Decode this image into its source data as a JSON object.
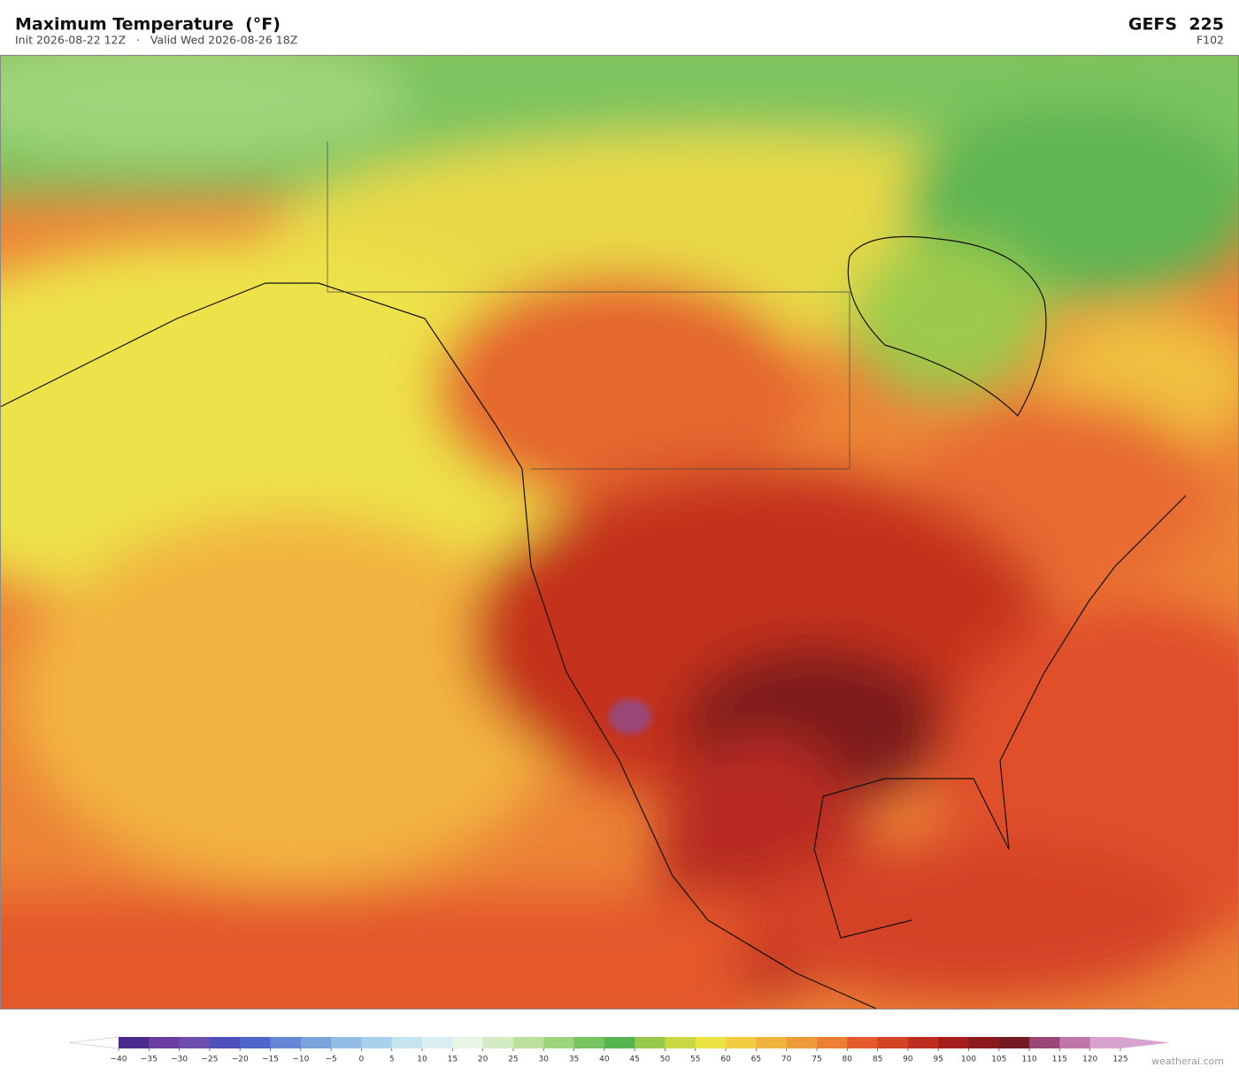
{
  "header": {
    "title": "Maximum Temperature  (°F)",
    "subtitle": "Init 2026-08-22 12Z   ·   Valid Wed 2026-08-26 18Z",
    "model": "GEFS  225",
    "forecast_hour": "F102"
  },
  "colorbar": {
    "ticks": [
      {
        "value": -40,
        "label": "−40"
      },
      {
        "value": -35,
        "label": "−35"
      },
      {
        "value": -30,
        "label": "−30"
      },
      {
        "value": -25,
        "label": "−25"
      },
      {
        "value": -20,
        "label": "−20"
      },
      {
        "value": -15,
        "label": "−15"
      },
      {
        "value": -10,
        "label": "−10"
      },
      {
        "value": -5,
        "label": "−5"
      },
      0,
      5,
      10,
      15,
      20,
      25,
      30,
      35,
      40,
      45,
      50,
      55,
      60,
      65,
      70,
      75,
      80,
      85,
      90,
      95,
      100,
      105,
      110,
      115,
      120,
      125
    ],
    "colors": [
      "#4a2a8c",
      "#6a3d9e",
      "#6f4fae",
      "#4f4fbe",
      "#4f66cc",
      "#6486d4",
      "#7aa3dc",
      "#93bde4",
      "#a9d1ec",
      "#c6e3f0",
      "#dbeff3",
      "#e8f4e4",
      "#d3ecc3",
      "#bce19f",
      "#9ed47e",
      "#78c462",
      "#56b450",
      "#96c84b",
      "#c8d945",
      "#ebe343",
      "#f2cd42",
      "#f0b43e",
      "#ee9a39",
      "#ec7f34",
      "#e45a2c",
      "#d44326",
      "#bf2f21",
      "#a3201f",
      "#8a1a1e",
      "#731a22",
      "#9a4778",
      "#bf76a8",
      "#d9a3cf"
    ],
    "under_color": "#ffffff",
    "over_color": "#d9a3cf"
  },
  "watermark": "weatherai.com"
}
